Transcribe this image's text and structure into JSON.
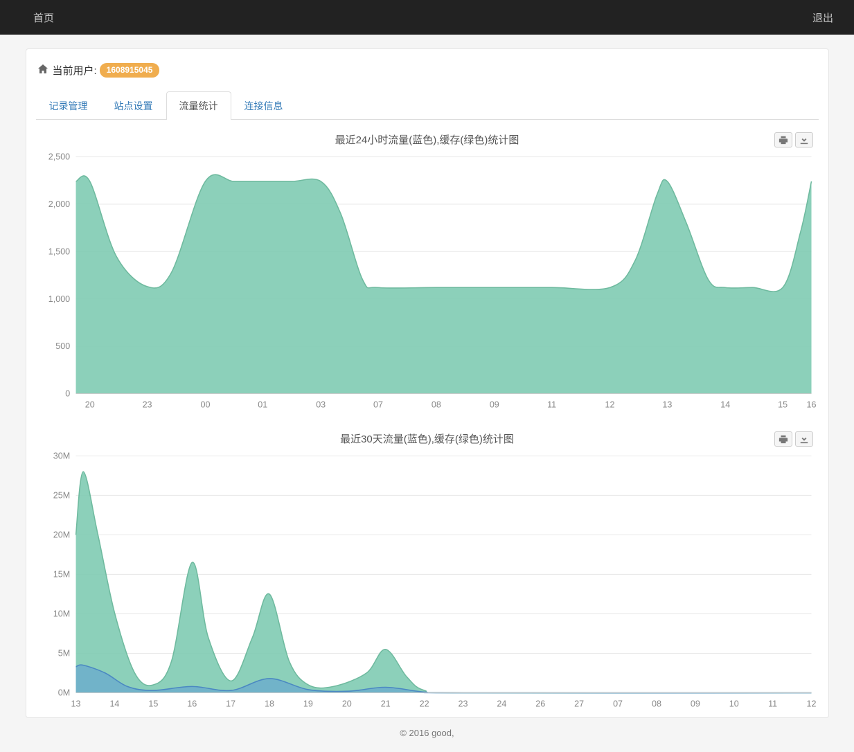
{
  "topbar": {
    "home": "首页",
    "logout": "退出"
  },
  "user": {
    "prefix": "当前用户:",
    "id": "1608915045"
  },
  "tabs": [
    {
      "label": "记录管理",
      "active": false
    },
    {
      "label": "站点设置",
      "active": false
    },
    {
      "label": "流量统计",
      "active": true
    },
    {
      "label": "连接信息",
      "active": false
    }
  ],
  "chart24h": {
    "type": "area",
    "title": "最近24小时流量(蓝色),缓存(绿色)统计图",
    "ylim": [
      0,
      2500
    ],
    "ytick_step": 500,
    "ytick_labels": [
      "0",
      "500",
      "1,000",
      "1,500",
      "2,000",
      "2,500"
    ],
    "x_labels": [
      "20",
      "23",
      "00",
      "01",
      "03",
      "07",
      "08",
      "09",
      "11",
      "12",
      "13",
      "14",
      "15",
      "16"
    ],
    "x_positions": [
      0.019,
      0.097,
      0.176,
      0.254,
      0.333,
      0.411,
      0.49,
      0.569,
      0.647,
      0.726,
      0.804,
      0.883,
      0.961,
      1.0
    ],
    "series_green": {
      "color": "#80cbb2",
      "opacity": 0.9,
      "stroke": "#6fba9f",
      "points": [
        [
          0.0,
          2240
        ],
        [
          0.019,
          2240
        ],
        [
          0.055,
          1450
        ],
        [
          0.097,
          1130
        ],
        [
          0.13,
          1280
        ],
        [
          0.176,
          2240
        ],
        [
          0.215,
          2240
        ],
        [
          0.254,
          2240
        ],
        [
          0.294,
          2240
        ],
        [
          0.333,
          2240
        ],
        [
          0.36,
          1900
        ],
        [
          0.39,
          1200
        ],
        [
          0.411,
          1120
        ],
        [
          0.49,
          1120
        ],
        [
          0.569,
          1120
        ],
        [
          0.647,
          1120
        ],
        [
          0.726,
          1120
        ],
        [
          0.76,
          1400
        ],
        [
          0.79,
          2100
        ],
        [
          0.804,
          2240
        ],
        [
          0.83,
          1800
        ],
        [
          0.86,
          1200
        ],
        [
          0.883,
          1120
        ],
        [
          0.92,
          1120
        ],
        [
          0.961,
          1120
        ],
        [
          0.985,
          1700
        ],
        [
          1.0,
          2240
        ]
      ]
    },
    "background_color": "#ffffff",
    "grid_color": "#e8e8e8"
  },
  "chart30d": {
    "type": "area",
    "title": "最近30天流量(蓝色),缓存(绿色)统计图",
    "ylim": [
      0,
      30
    ],
    "ylabel_suffix": "M",
    "ytick_labels": [
      "0M",
      "5M",
      "10M",
      "15M",
      "20M",
      "25M",
      "30M"
    ],
    "x_labels": [
      "13",
      "14",
      "15",
      "16",
      "17",
      "18",
      "19",
      "20",
      "21",
      "22",
      "23",
      "24",
      "26",
      "27",
      "07",
      "08",
      "09",
      "10",
      "11",
      "12"
    ],
    "series_green": {
      "color": "#80cbb2",
      "opacity": 0.9,
      "stroke": "#6fba9f",
      "points": [
        [
          0.0,
          20.0
        ],
        [
          0.01,
          28.0
        ],
        [
          0.03,
          20.0
        ],
        [
          0.053,
          10.0
        ],
        [
          0.08,
          2.5
        ],
        [
          0.105,
          1.0
        ],
        [
          0.13,
          4.0
        ],
        [
          0.158,
          16.5
        ],
        [
          0.18,
          7.0
        ],
        [
          0.211,
          1.5
        ],
        [
          0.24,
          7.0
        ],
        [
          0.263,
          12.5
        ],
        [
          0.29,
          4.0
        ],
        [
          0.316,
          1.0
        ],
        [
          0.35,
          0.8
        ],
        [
          0.395,
          2.5
        ],
        [
          0.421,
          5.5
        ],
        [
          0.45,
          2.0
        ],
        [
          0.474,
          0.3
        ],
        [
          0.526,
          0.0
        ],
        [
          1.0,
          0.0
        ]
      ]
    },
    "series_blue": {
      "color": "#5b9bd5",
      "opacity": 0.55,
      "stroke": "#4a88c2",
      "points": [
        [
          0.0,
          3.3
        ],
        [
          0.01,
          3.5
        ],
        [
          0.04,
          2.5
        ],
        [
          0.07,
          0.8
        ],
        [
          0.105,
          0.3
        ],
        [
          0.158,
          0.8
        ],
        [
          0.211,
          0.3
        ],
        [
          0.263,
          1.8
        ],
        [
          0.316,
          0.4
        ],
        [
          0.37,
          0.2
        ],
        [
          0.421,
          0.7
        ],
        [
          0.474,
          0.1
        ],
        [
          0.526,
          0.0
        ],
        [
          1.0,
          0.0
        ]
      ]
    },
    "background_color": "#ffffff",
    "grid_color": "#e8e8e8"
  },
  "footer": "© 2016 good,"
}
